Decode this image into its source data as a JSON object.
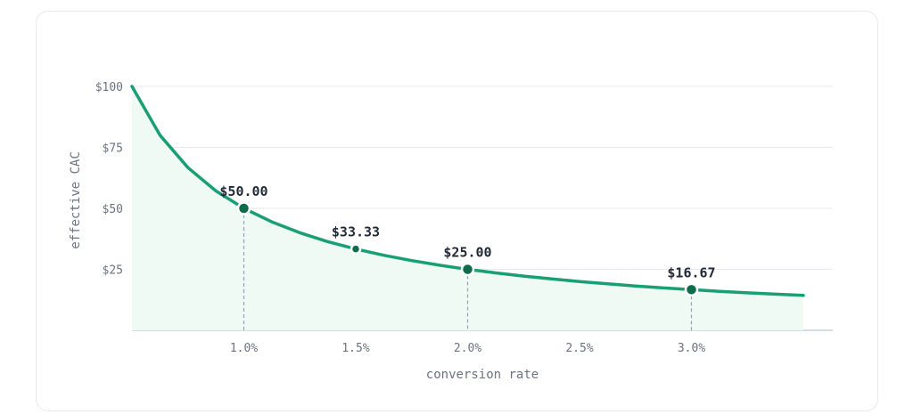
{
  "chart_data": {
    "type": "line",
    "title": "",
    "xlabel": "conversion rate",
    "ylabel": "effective CAC",
    "xlim": [
      0.5,
      3.5
    ],
    "ylim": [
      0,
      100
    ],
    "x_ticks": [
      1.0,
      1.5,
      2.0,
      2.5,
      3.0
    ],
    "x_tick_labels": [
      "1.0%",
      "1.5%",
      "2.0%",
      "2.5%",
      "3.0%"
    ],
    "y_ticks": [
      25,
      50,
      75,
      100
    ],
    "y_tick_labels": [
      "$25",
      "$50",
      "$75",
      "$100"
    ],
    "grid": "horizontal",
    "series": [
      {
        "formula": "y = 50 / x",
        "x": [
          0.5,
          0.625,
          0.75,
          0.875,
          1.0,
          1.125,
          1.25,
          1.375,
          1.5,
          1.625,
          1.75,
          1.875,
          2.0,
          2.125,
          2.25,
          2.375,
          2.5,
          2.625,
          2.75,
          2.875,
          3.0,
          3.125,
          3.25,
          3.375,
          3.5
        ],
        "values": [
          100,
          80,
          66.67,
          57.14,
          50,
          44.44,
          40,
          36.36,
          33.33,
          30.77,
          28.57,
          26.67,
          25,
          23.53,
          22.22,
          21.05,
          20,
          19.05,
          18.18,
          17.39,
          16.67,
          16,
          15.38,
          14.81,
          14.29
        ]
      }
    ],
    "highlighted_points": [
      {
        "x": 1.0,
        "y": 50.0,
        "label": "$50.00",
        "major": true
      },
      {
        "x": 1.5,
        "y": 33.33,
        "label": "$33.33",
        "major": false
      },
      {
        "x": 2.0,
        "y": 25.0,
        "label": "$25.00",
        "major": true
      },
      {
        "x": 3.0,
        "y": 16.67,
        "label": "$16.67",
        "major": true
      }
    ],
    "colors": {
      "line": "#1a9e74",
      "area": "#effaf5",
      "marker": "#0e6b4b",
      "grid": "#e6e9ee",
      "axis": "#c9d1dc",
      "dropline": "#94a3b8"
    }
  }
}
